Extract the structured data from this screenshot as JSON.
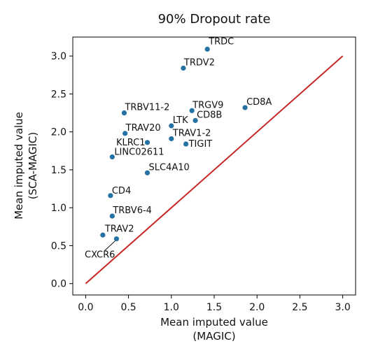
{
  "chart_data": {
    "type": "scatter",
    "title": "90% Dropout rate",
    "xlabel_lines": [
      "Mean imputed value",
      "(MAGIC)"
    ],
    "ylabel_lines": [
      "Mean imputed value",
      "(SCA-MAGIC)"
    ],
    "xlim": [
      -0.15,
      3.15
    ],
    "ylim": [
      -0.15,
      3.25
    ],
    "xticks": [
      0.0,
      0.5,
      1.0,
      1.5,
      2.0,
      2.5,
      3.0
    ],
    "xtick_labels": [
      "0.0",
      "0.5",
      "1.0",
      "1.5",
      "2.0",
      "2.5",
      "3.0"
    ],
    "yticks": [
      0.0,
      0.5,
      1.0,
      1.5,
      2.0,
      2.5,
      3.0
    ],
    "ytick_labels": [
      "0.0",
      "0.5",
      "1.0",
      "1.5",
      "2.0",
      "2.5",
      "3.0"
    ],
    "grid": false,
    "colors": {
      "points": "#2471a3",
      "diagonal": "#c62828",
      "axes": "#000000"
    },
    "reference_line": {
      "x": [
        0,
        3
      ],
      "y": [
        0,
        3
      ]
    },
    "points": [
      {
        "label": "TRDC",
        "x": 1.42,
        "y": 3.09
      },
      {
        "label": "TRDV2",
        "x": 1.14,
        "y": 2.84
      },
      {
        "label": "CD8A",
        "x": 1.86,
        "y": 2.32
      },
      {
        "label": "TRGV9",
        "x": 1.24,
        "y": 2.28
      },
      {
        "label": "TRBV11-2",
        "x": 0.45,
        "y": 2.25
      },
      {
        "label": "CD8B",
        "x": 1.28,
        "y": 2.15
      },
      {
        "label": "LTK",
        "x": 1.0,
        "y": 2.08
      },
      {
        "label": "TRAV20",
        "x": 0.46,
        "y": 1.98
      },
      {
        "label": "TRAV1-2",
        "x": 1.0,
        "y": 1.91
      },
      {
        "label": "KLRC1",
        "x": 0.72,
        "y": 1.86
      },
      {
        "label": "TIGIT",
        "x": 1.17,
        "y": 1.84
      },
      {
        "label": "LINC02611",
        "x": 0.31,
        "y": 1.67
      },
      {
        "label": "SLC4A10",
        "x": 0.72,
        "y": 1.46
      },
      {
        "label": "CD4",
        "x": 0.29,
        "y": 1.16
      },
      {
        "label": "TRBV6-4",
        "x": 0.31,
        "y": 0.89
      },
      {
        "label": "TRAV2",
        "x": 0.2,
        "y": 0.64
      },
      {
        "label": "CXCR6",
        "x": 0.36,
        "y": 0.59
      }
    ]
  }
}
